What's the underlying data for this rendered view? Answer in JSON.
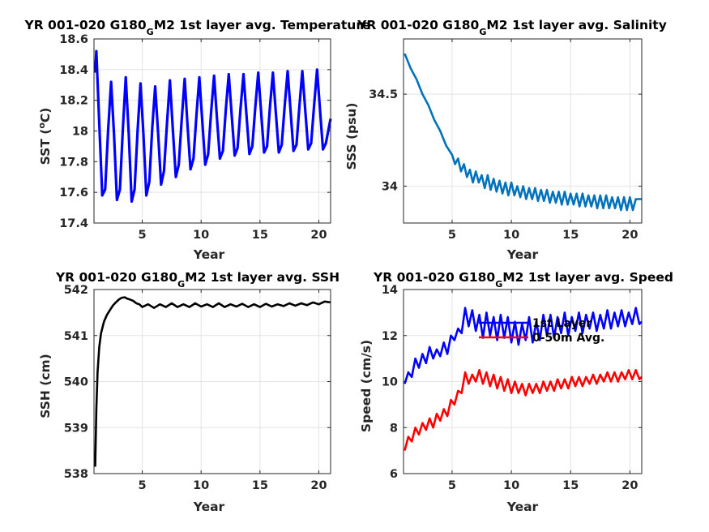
{
  "chart_data": [
    {
      "type": "line",
      "title": {
        "pre": "YR 001-020 G180",
        "sub": "G",
        "post": "M2 1st layer avg. Temperature"
      },
      "xlabel": "Year",
      "ylabel": {
        "pre": "SST (",
        "sup": "o",
        "post": "C)"
      },
      "xlim": [
        0.9,
        21
      ],
      "ylim": [
        17.4,
        18.6
      ],
      "xticks": [
        5,
        10,
        15,
        20
      ],
      "yticks": [
        17.4,
        17.6,
        17.8,
        18,
        18.2,
        18.4,
        18.6
      ],
      "ytick_labels": [
        "17.4",
        "17.6",
        "17.8",
        "18",
        "18.2",
        "18.4",
        "18.6"
      ],
      "grid": true,
      "color": "#0000ff",
      "series": [
        {
          "x": [
            1.0,
            1.1,
            1.35,
            1.6,
            1.85,
            2.1,
            2.35,
            2.6,
            2.85,
            3.1,
            3.35,
            3.6,
            3.85,
            4.1,
            4.35,
            4.6,
            4.85,
            5.1,
            5.35,
            5.6,
            5.85,
            6.1,
            6.35,
            6.6,
            6.85,
            7.1,
            7.35,
            7.6,
            7.85,
            8.1,
            8.35,
            8.6,
            8.85,
            9.1,
            9.35,
            9.6,
            9.85,
            10.1,
            10.35,
            10.6,
            10.85,
            11.1,
            11.35,
            11.6,
            11.85,
            12.1,
            12.35,
            12.6,
            12.85,
            13.1,
            13.35,
            13.6,
            13.85,
            14.1,
            14.35,
            14.6,
            14.85,
            15.1,
            15.35,
            15.6,
            15.85,
            16.1,
            16.35,
            16.6,
            16.85,
            17.1,
            17.35,
            17.6,
            17.85,
            18.1,
            18.35,
            18.6,
            18.85,
            19.1,
            19.35,
            19.6,
            19.85,
            20.1,
            20.35,
            20.6,
            20.85,
            21.0
          ],
          "y": [
            18.38,
            18.52,
            18.05,
            17.58,
            17.62,
            18.0,
            18.32,
            17.98,
            17.55,
            17.62,
            18.01,
            18.35,
            17.98,
            17.54,
            17.62,
            18.0,
            18.31,
            17.98,
            17.58,
            17.67,
            18.02,
            18.29,
            17.98,
            17.65,
            17.74,
            18.05,
            18.33,
            18.01,
            17.7,
            17.78,
            18.07,
            18.34,
            18.03,
            17.75,
            17.82,
            18.1,
            18.35,
            18.06,
            17.78,
            17.85,
            18.12,
            18.36,
            18.08,
            17.82,
            17.87,
            18.14,
            18.37,
            18.1,
            17.84,
            17.89,
            18.15,
            18.37,
            18.11,
            17.85,
            17.9,
            18.15,
            18.38,
            18.12,
            17.86,
            17.9,
            18.16,
            18.38,
            18.12,
            17.86,
            17.91,
            18.16,
            18.39,
            18.13,
            17.87,
            17.91,
            18.16,
            18.39,
            18.13,
            17.88,
            17.92,
            18.17,
            18.4,
            18.14,
            17.88,
            17.92,
            18.02,
            18.08
          ]
        }
      ]
    },
    {
      "type": "line",
      "title": {
        "pre": "YR 001-020 G180",
        "sub": "G",
        "post": "M2 1st layer avg. Salinity"
      },
      "xlabel": "Year",
      "ylabel": {
        "pre": "SSS (psu)",
        "sup": "",
        "post": ""
      },
      "xlim": [
        0.9,
        21
      ],
      "ylim": [
        33.8,
        34.8
      ],
      "xticks": [
        5,
        10,
        15,
        20
      ],
      "yticks": [
        34,
        34.5
      ],
      "ytick_labels": [
        "34",
        "34.5"
      ],
      "grid": true,
      "color": "#0072bd",
      "series": [
        {
          "x": [
            1.0,
            1.5,
            2.0,
            2.5,
            3.0,
            3.5,
            4.0,
            4.5,
            5.0,
            5.25,
            5.5,
            5.75,
            6.0,
            6.25,
            6.5,
            6.75,
            7.0,
            7.25,
            7.5,
            7.75,
            8.0,
            8.25,
            8.5,
            8.75,
            9.0,
            9.25,
            9.5,
            9.75,
            10.0,
            10.25,
            10.5,
            10.75,
            11.0,
            11.25,
            11.5,
            11.75,
            12.0,
            12.25,
            12.5,
            12.75,
            13.0,
            13.25,
            13.5,
            13.75,
            14.0,
            14.25,
            14.5,
            14.75,
            15.0,
            15.25,
            15.5,
            15.75,
            16.0,
            16.25,
            16.5,
            16.75,
            17.0,
            17.25,
            17.5,
            17.75,
            18.0,
            18.25,
            18.5,
            18.75,
            19.0,
            19.25,
            19.5,
            19.75,
            20.0,
            20.25,
            20.5,
            20.75,
            21.0
          ],
          "y": [
            34.72,
            34.64,
            34.58,
            34.5,
            34.44,
            34.36,
            34.3,
            34.22,
            34.17,
            34.12,
            34.15,
            34.08,
            34.12,
            34.05,
            34.09,
            34.02,
            34.08,
            34.02,
            34.06,
            33.99,
            34.06,
            33.98,
            34.04,
            33.97,
            34.03,
            33.96,
            34.02,
            33.95,
            34.02,
            33.95,
            34.0,
            33.94,
            34.0,
            33.93,
            33.99,
            33.93,
            33.99,
            33.92,
            33.98,
            33.92,
            33.98,
            33.91,
            33.97,
            33.91,
            33.97,
            33.9,
            33.97,
            33.9,
            33.96,
            33.9,
            33.96,
            33.89,
            33.96,
            33.89,
            33.95,
            33.89,
            33.95,
            33.88,
            33.95,
            33.88,
            33.95,
            33.88,
            33.94,
            33.88,
            33.94,
            33.87,
            33.94,
            33.87,
            33.94,
            33.87,
            33.93,
            33.93,
            33.93
          ]
        }
      ]
    },
    {
      "type": "line",
      "title": {
        "pre": "YR 001-020 G180",
        "sub": "G",
        "post": "M2 1st layer avg. SSH"
      },
      "xlabel": "Year",
      "ylabel": {
        "pre": "SSH (cm)",
        "sup": "",
        "post": ""
      },
      "xlim": [
        0.9,
        21
      ],
      "ylim": [
        538,
        542
      ],
      "xticks": [
        5,
        10,
        15,
        20
      ],
      "yticks": [
        538,
        539,
        540,
        541,
        542
      ],
      "ytick_labels": [
        "538",
        "539",
        "540",
        "541",
        "542"
      ],
      "grid": true,
      "color": "#000000",
      "series": [
        {
          "x": [
            1.0,
            1.1,
            1.2,
            1.35,
            1.5,
            1.75,
            2.0,
            2.25,
            2.5,
            2.75,
            3.0,
            3.25,
            3.5,
            3.75,
            4.0,
            4.25,
            4.5,
            4.75,
            5.0,
            5.5,
            6.0,
            6.5,
            7.0,
            7.5,
            8.0,
            8.5,
            9.0,
            9.5,
            10.0,
            10.5,
            11.0,
            11.5,
            12.0,
            12.5,
            13.0,
            13.5,
            14.0,
            14.5,
            15.0,
            15.5,
            16.0,
            16.5,
            17.0,
            17.5,
            18.0,
            18.5,
            19.0,
            19.5,
            20.0,
            20.5,
            21.0
          ],
          "y": [
            538.15,
            539.4,
            540.2,
            540.75,
            541.05,
            541.3,
            541.45,
            541.55,
            541.65,
            541.72,
            541.78,
            541.82,
            541.83,
            541.8,
            541.78,
            541.75,
            541.7,
            541.68,
            541.62,
            541.68,
            541.6,
            541.68,
            541.62,
            541.7,
            541.62,
            541.68,
            541.62,
            541.7,
            541.63,
            541.68,
            541.62,
            541.7,
            541.62,
            541.68,
            541.63,
            541.69,
            541.62,
            541.68,
            541.62,
            541.69,
            541.63,
            541.68,
            541.64,
            541.7,
            541.65,
            541.7,
            541.66,
            541.72,
            541.68,
            541.74,
            541.72
          ]
        }
      ]
    },
    {
      "type": "line",
      "title": {
        "pre": "YR 001-020 G180",
        "sub": "G",
        "post": "M2 1st layer avg. Speed"
      },
      "xlabel": "Year",
      "ylabel": {
        "pre": "Speed (cm/s)",
        "sup": "",
        "post": ""
      },
      "xlim": [
        0.9,
        21
      ],
      "ylim": [
        6,
        14
      ],
      "xticks": [
        5,
        10,
        15,
        20
      ],
      "yticks": [
        6,
        8,
        10,
        12,
        14
      ],
      "ytick_labels": [
        "6",
        "8",
        "10",
        "12",
        "14"
      ],
      "grid": true,
      "legend": "top-right",
      "series": [
        {
          "name": "1st Layer",
          "color": "#0000ff",
          "x": [
            1.0,
            1.3,
            1.6,
            1.9,
            2.2,
            2.5,
            2.8,
            3.1,
            3.4,
            3.7,
            4.0,
            4.3,
            4.6,
            4.9,
            5.2,
            5.5,
            5.8,
            6.1,
            6.4,
            6.7,
            7.0,
            7.3,
            7.6,
            7.9,
            8.2,
            8.5,
            8.8,
            9.1,
            9.4,
            9.7,
            10.0,
            10.3,
            10.6,
            10.9,
            11.2,
            11.5,
            11.8,
            12.1,
            12.4,
            12.7,
            13.0,
            13.3,
            13.6,
            13.9,
            14.2,
            14.5,
            14.8,
            15.1,
            15.4,
            15.7,
            16.0,
            16.3,
            16.6,
            16.9,
            17.2,
            17.5,
            17.8,
            18.1,
            18.4,
            18.7,
            19.0,
            19.3,
            19.6,
            19.9,
            20.2,
            20.5,
            20.8,
            21.0
          ],
          "y": [
            9.9,
            10.4,
            10.2,
            11.0,
            10.6,
            11.2,
            10.8,
            11.5,
            11.0,
            11.4,
            11.1,
            11.7,
            11.2,
            12.0,
            11.8,
            12.3,
            12.1,
            13.2,
            12.4,
            13.1,
            12.2,
            12.9,
            11.9,
            13.0,
            12.0,
            12.8,
            11.8,
            12.9,
            11.9,
            12.8,
            11.7,
            12.6,
            11.6,
            12.5,
            11.8,
            12.8,
            11.7,
            12.6,
            11.8,
            12.9,
            12.0,
            12.9,
            11.9,
            12.8,
            12.1,
            13.0,
            12.0,
            12.8,
            12.2,
            13.0,
            12.1,
            12.9,
            12.3,
            13.0,
            12.2,
            12.9,
            12.3,
            13.1,
            12.3,
            13.0,
            12.4,
            13.1,
            12.4,
            13.0,
            12.5,
            13.2,
            12.5,
            12.6
          ]
        },
        {
          "name": "0-50m Avg.",
          "color": "#ff0000",
          "x": [
            1.0,
            1.3,
            1.6,
            1.9,
            2.2,
            2.5,
            2.8,
            3.1,
            3.4,
            3.7,
            4.0,
            4.3,
            4.6,
            4.9,
            5.2,
            5.5,
            5.8,
            6.1,
            6.4,
            6.7,
            7.0,
            7.3,
            7.6,
            7.9,
            8.2,
            8.5,
            8.8,
            9.1,
            9.4,
            9.7,
            10.0,
            10.3,
            10.6,
            10.9,
            11.2,
            11.5,
            11.8,
            12.1,
            12.4,
            12.7,
            13.0,
            13.3,
            13.6,
            13.9,
            14.2,
            14.5,
            14.8,
            15.1,
            15.4,
            15.7,
            16.0,
            16.3,
            16.6,
            16.9,
            17.2,
            17.5,
            17.8,
            18.1,
            18.4,
            18.7,
            19.0,
            19.3,
            19.6,
            19.9,
            20.2,
            20.5,
            20.8,
            21.0
          ],
          "y": [
            7.0,
            7.6,
            7.4,
            8.0,
            7.7,
            8.2,
            7.9,
            8.4,
            8.0,
            8.6,
            8.3,
            8.8,
            8.5,
            9.2,
            9.0,
            9.6,
            9.5,
            10.4,
            9.9,
            10.3,
            10.0,
            10.5,
            9.9,
            10.4,
            9.8,
            10.3,
            9.7,
            10.2,
            9.6,
            10.1,
            9.5,
            10.0,
            9.5,
            9.9,
            9.4,
            9.9,
            9.5,
            9.9,
            9.5,
            10.0,
            9.6,
            10.0,
            9.6,
            10.1,
            9.7,
            10.1,
            9.7,
            10.2,
            9.8,
            10.2,
            9.8,
            10.2,
            9.9,
            10.3,
            9.9,
            10.3,
            10.0,
            10.4,
            10.0,
            10.4,
            10.0,
            10.4,
            10.1,
            10.5,
            10.1,
            10.5,
            10.1,
            10.2
          ]
        }
      ]
    }
  ]
}
